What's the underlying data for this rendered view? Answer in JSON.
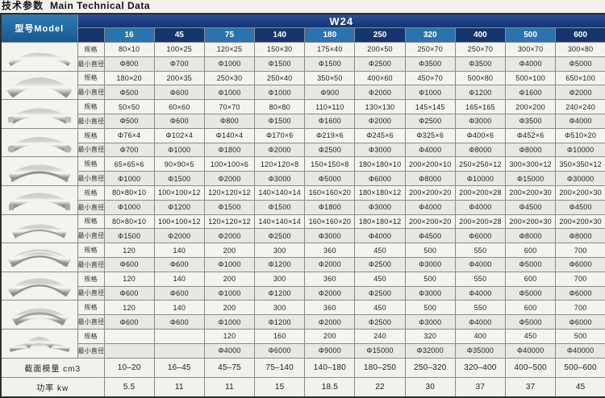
{
  "title_cn": "技术参数",
  "title_en": "Main Technical Data",
  "colors": {
    "header_navy": "#16356f",
    "header_light_blue": "#2b73ae",
    "model_light": "#2f7cb4",
    "model_dark": "#17588f"
  },
  "table": {
    "model_header": "型号Model",
    "series_header": "W24",
    "columns": [
      "16",
      "45",
      "75",
      "140",
      "180",
      "250",
      "320",
      "400",
      "500",
      "600"
    ],
    "row_labels": {
      "spec": "规格",
      "min": "最小直径"
    },
    "rows": [
      {
        "profile": "flat-bar",
        "spec": [
          "80×10",
          "100×25",
          "120×25",
          "150×30",
          "175×40",
          "200×50",
          "250×70",
          "250×70",
          "300×70",
          "300×80"
        ],
        "min": [
          "Φ800",
          "Φ700",
          "Φ1000",
          "Φ1500",
          "Φ1500",
          "Φ2500",
          "Φ3500",
          "Φ3500",
          "Φ4000",
          "Φ5000"
        ]
      },
      {
        "profile": "flat-bar-on-edge",
        "spec": [
          "180×20",
          "200×35",
          "250×30",
          "250×40",
          "350×50",
          "400×60",
          "450×70",
          "500×80",
          "500×100",
          "650×100"
        ],
        "min": [
          "Φ500",
          "Φ600",
          "Φ1000",
          "Φ1000",
          "Φ900",
          "Φ2000",
          "Φ1000",
          "Φ1200",
          "Φ1600",
          "Φ2000"
        ]
      },
      {
        "profile": "square-bar",
        "spec": [
          "50×50",
          "60×60",
          "70×70",
          "80×80",
          "110×110",
          "130×130",
          "145×145",
          "165×165",
          "200×200",
          "240×240"
        ],
        "min": [
          "Φ500",
          "Φ600",
          "Φ800",
          "Φ1500",
          "Φ1600",
          "Φ2000",
          "Φ2500",
          "Φ3000",
          "Φ3500",
          "Φ4000"
        ]
      },
      {
        "profile": "round-tube",
        "spec": [
          "Φ76×4",
          "Φ102×4",
          "Φ140×4",
          "Φ170×6",
          "Φ219×6",
          "Φ245×6",
          "Φ325×6",
          "Φ400×6",
          "Φ452×6",
          "Φ510×20"
        ],
        "min": [
          "Φ700",
          "Φ1000",
          "Φ1800",
          "Φ2000",
          "Φ2500",
          "Φ3000",
          "Φ4000",
          "Φ8000",
          "Φ8000",
          "Φ10000"
        ]
      },
      {
        "profile": "angle-steel",
        "spec": [
          "65×65×6",
          "90×90×5",
          "100×100×6",
          "120×120×8",
          "150×150×8",
          "180×180×10",
          "200×200×10",
          "250×250×12",
          "300×300×12",
          "350×350×12"
        ],
        "min": [
          "Φ1000",
          "Φ1500",
          "Φ2000",
          "Φ3000",
          "Φ5000",
          "Φ6000",
          "Φ8000",
          "Φ10000",
          "Φ15000",
          "Φ30000"
        ]
      },
      {
        "profile": "angle-steel-out",
        "spec": [
          "80×80×10",
          "100×100×12",
          "120×120×12",
          "140×140×14",
          "160×160×20",
          "180×180×12",
          "200×200×20",
          "200×200×28",
          "200×200×30",
          "200×200×30"
        ],
        "min": [
          "Φ1000",
          "Φ1200",
          "Φ1500",
          "Φ1500",
          "Φ1800",
          "Φ3000",
          "Φ4000",
          "Φ4000",
          "Φ4500",
          "Φ4500"
        ]
      },
      {
        "profile": "angle-steel-down",
        "spec": [
          "80×80×10",
          "100×100×12",
          "120×120×12",
          "140×140×14",
          "160×160×20",
          "180×180×12",
          "200×200×20",
          "200×200×28",
          "200×200×30",
          "200×200×30"
        ],
        "min": [
          "Φ1500",
          "Φ2000",
          "Φ2000",
          "Φ2500",
          "Φ3000",
          "Φ4000",
          "Φ4500",
          "Φ6000",
          "Φ8000",
          "Φ8000"
        ]
      },
      {
        "profile": "channel-steel",
        "spec": [
          "120",
          "140",
          "200",
          "300",
          "360",
          "450",
          "500",
          "550",
          "600",
          "700"
        ],
        "min": [
          "Φ600",
          "Φ600",
          "Φ1000",
          "Φ1200",
          "Φ2000",
          "Φ2500",
          "Φ3000",
          "Φ4000",
          "Φ5000",
          "Φ6000"
        ]
      },
      {
        "profile": "channel-steel-in",
        "spec": [
          "120",
          "140",
          "200",
          "300",
          "360",
          "450",
          "500",
          "550",
          "600",
          "700"
        ],
        "min": [
          "Φ600",
          "Φ600",
          "Φ1000",
          "Φ1200",
          "Φ2000",
          "Φ2500",
          "Φ3000",
          "Φ4000",
          "Φ5000",
          "Φ6000"
        ]
      },
      {
        "profile": "i-beam",
        "spec": [
          "120",
          "140",
          "200",
          "300",
          "360",
          "450",
          "500",
          "550",
          "600",
          "700"
        ],
        "min": [
          "Φ600",
          "Φ600",
          "Φ1000",
          "Φ1200",
          "Φ2000",
          "Φ2500",
          "Φ3000",
          "Φ4000",
          "Φ5000",
          "Φ6000"
        ]
      },
      {
        "profile": "t-rail",
        "spec": [
          "",
          "",
          "120",
          "160",
          "200",
          "240",
          "320",
          "400",
          "450",
          "500"
        ],
        "min": [
          "",
          "",
          "Φ4000",
          "Φ6000",
          "Φ9000",
          "Φ15000",
          "Φ32000",
          "Φ35000",
          "Φ40000",
          "Φ40000"
        ]
      }
    ],
    "footer": [
      {
        "label": "截面模量 cm3",
        "values": [
          "10–20",
          "16–45",
          "45–75",
          "75–140",
          "140–180",
          "180–250",
          "250–320",
          "320–400",
          "400–500",
          "500–600"
        ]
      },
      {
        "label": "功率 kw",
        "values": [
          "5.5",
          "11",
          "11",
          "15",
          "18.5",
          "22",
          "30",
          "37",
          "37",
          "45"
        ]
      }
    ]
  }
}
